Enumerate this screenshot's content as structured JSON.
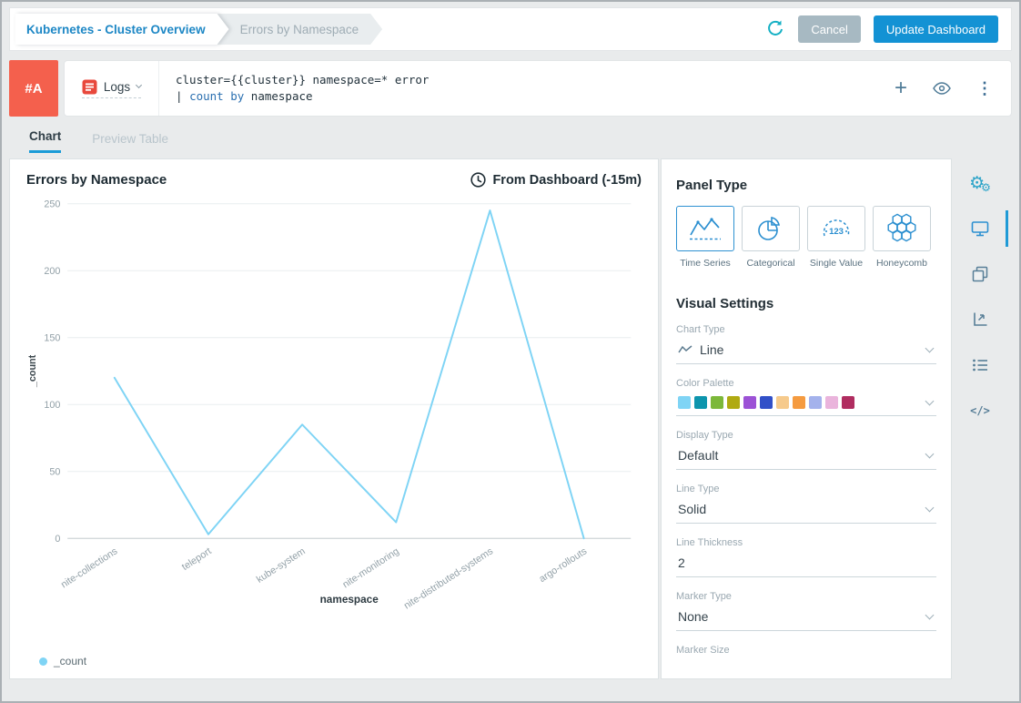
{
  "header": {
    "breadcrumb_primary": "Kubernetes - Cluster Overview",
    "breadcrumb_secondary": "Errors by Namespace",
    "cancel_label": "Cancel",
    "update_label": "Update Dashboard"
  },
  "icons": {
    "plus": "+",
    "kebab": "⋮",
    "gear": "⚙",
    "gear_small": "⚙",
    "code": "</>"
  },
  "query": {
    "row_label": "#A",
    "source_label": "Logs",
    "line1": "cluster={{cluster}} namespace=* error",
    "line2_pipe": "| ",
    "line2_keyword": "count by",
    "line2_rest": " namespace"
  },
  "tabs": {
    "chart": "Chart",
    "preview_table": "Preview Table"
  },
  "chart": {
    "title": "Errors by Namespace",
    "time_range": "From Dashboard (-15m)",
    "legend_label": "_count"
  },
  "chart_data": {
    "type": "line",
    "title": "Errors by Namespace",
    "categories": [
      "nite-collections",
      "teleport",
      "kube-system",
      "nite-monitoring",
      "nite-distributed-systems",
      "argo-rollouts"
    ],
    "series": [
      {
        "name": "_count",
        "values": [
          120,
          3,
          85,
          12,
          245,
          0
        ]
      }
    ],
    "xlabel": "namespace",
    "ylabel": "_count",
    "ylim": [
      0,
      250
    ],
    "yticks": [
      0,
      50,
      100,
      150,
      200,
      250
    ],
    "line_color": "#7fd4f5",
    "grid": true,
    "legend_position": "bottom-left"
  },
  "panel_type": {
    "title": "Panel Type",
    "options": [
      {
        "label": "Time Series",
        "selected": true
      },
      {
        "label": "Categorical",
        "selected": false
      },
      {
        "label": "Single Value",
        "selected": false
      },
      {
        "label": "Honeycomb",
        "selected": false
      }
    ]
  },
  "visual_settings": {
    "title": "Visual Settings",
    "chart_type": {
      "label": "Chart Type",
      "value": "Line"
    },
    "color_palette": {
      "label": "Color Palette",
      "colors": [
        "#7fd4f5",
        "#0d95ad",
        "#7cb83a",
        "#b0aa12",
        "#9c52d6",
        "#3150c8",
        "#f6ca8c",
        "#f59b40",
        "#a4b2ec",
        "#eab4dc",
        "#b02d60"
      ]
    },
    "display_type": {
      "label": "Display Type",
      "value": "Default"
    },
    "line_type": {
      "label": "Line Type",
      "value": "Solid"
    },
    "line_thickness": {
      "label": "Line Thickness",
      "value": "2"
    },
    "marker_type": {
      "label": "Marker Type",
      "value": "None"
    },
    "marker_size": {
      "label": "Marker Size"
    }
  }
}
